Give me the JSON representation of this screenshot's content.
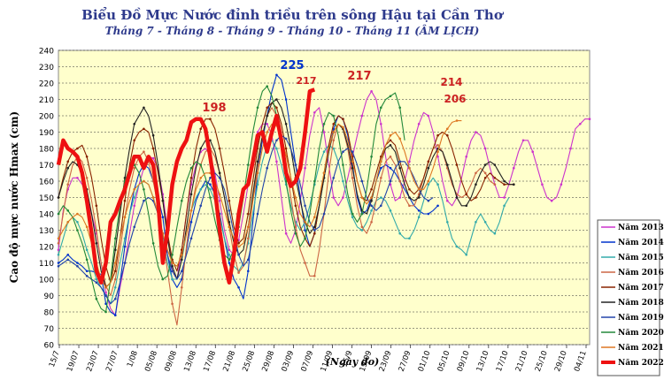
{
  "title": "Biểu Đồ Mực Nước đỉnh triều trên sông Hậu tại Cần Thơ",
  "subtitle": "Tháng 7 - Tháng 8 - Tháng 9 - Tháng 10 - Tháng 11 (ÂM LỊCH)",
  "chart_data": {
    "type": "line",
    "ylabel": "Cao độ mực nước Hmax (cm)",
    "xlabel": "(Ngày đo)",
    "ylim": [
      60,
      240
    ],
    "yticks": [
      60,
      70,
      80,
      90,
      100,
      110,
      120,
      130,
      140,
      150,
      160,
      170,
      180,
      190,
      200,
      210,
      220,
      230,
      240
    ],
    "xticks": [
      "15/7",
      "19/07",
      "23/07",
      "27/07",
      "1/08",
      "05/08",
      "09/08",
      "13/08",
      "17/08",
      "21/08",
      "25/08",
      "29/08",
      "03/09",
      "07/09",
      "11/09",
      "15/9",
      "19/09",
      "23/09",
      "27/09",
      "01/10",
      "05/10",
      "09/10",
      "13/10",
      "17/10",
      "21/10",
      "25/10",
      "29/10",
      "04/11"
    ],
    "grid": true,
    "legend_position": "right",
    "x_start_day": 15,
    "series": [
      {
        "name": "Năm 2013",
        "color": "#cc33cc",
        "values": [
          118,
          142,
          155,
          162,
          162,
          158,
          150,
          140,
          128,
          110,
          92,
          82,
          78,
          95,
          110,
          128,
          145,
          158,
          168,
          175,
          174,
          168,
          152,
          130,
          105,
          100,
          118,
          140,
          158,
          170,
          178,
          180,
          176,
          165,
          148,
          130,
          118,
          115,
          124,
          140,
          158,
          175,
          190,
          195,
          195,
          188,
          172,
          150,
          128,
          122,
          130,
          148,
          168,
          188,
          202,
          205,
          190,
          170,
          150,
          145,
          150,
          162,
          175,
          188,
          200,
          210,
          215,
          210,
          195,
          175,
          158,
          148,
          150,
          160,
          172,
          185,
          195,
          202,
          200,
          190,
          175,
          160,
          148,
          145,
          150,
          162,
          175,
          185,
          190,
          188,
          180,
          168,
          158,
          150,
          150,
          158,
          168,
          178,
          185,
          185,
          178,
          168,
          158,
          150,
          148,
          150,
          158,
          168,
          180,
          192,
          195,
          198,
          198
        ]
      },
      {
        "name": "Năm 2014",
        "color": "#0033cc",
        "values": [
          110,
          112,
          115,
          112,
          110,
          108,
          105,
          105,
          104,
          103,
          85,
          80,
          78,
          98,
          120,
          140,
          155,
          165,
          170,
          168,
          160,
          150,
          138,
          115,
          100,
          95,
          100,
          118,
          135,
          148,
          155,
          160,
          158,
          152,
          140,
          125,
          110,
          100,
          95,
          88,
          105,
          135,
          165,
          185,
          200,
          215,
          225,
          222,
          210,
          190,
          170,
          150,
          130,
          120,
          128,
          145,
          162,
          178,
          192,
          200,
          198,
          188,
          170,
          150,
          140,
          142,
          150,
          160,
          168,
          170,
          168,
          165,
          160,
          155,
          150,
          145,
          142,
          140,
          140,
          142,
          145
        ]
      },
      {
        "name": "Năm 2015",
        "color": "#33aaaa",
        "values": [
          115,
          125,
          135,
          138,
          135,
          128,
          118,
          110,
          100,
          95,
          90,
          85,
          95,
          110,
          125,
          140,
          150,
          158,
          160,
          158,
          150,
          140,
          125,
          110,
          100,
          100,
          112,
          128,
          142,
          150,
          155,
          158,
          155,
          148,
          138,
          125,
          115,
          108,
          105,
          110,
          122,
          140,
          158,
          172,
          182,
          185,
          180,
          170,
          158,
          145,
          135,
          130,
          135,
          145,
          158,
          170,
          178,
          182,
          180,
          172,
          160,
          148,
          138,
          132,
          130,
          135,
          142,
          148,
          150,
          148,
          142,
          135,
          128,
          125,
          125,
          130,
          138,
          148,
          158,
          162,
          158,
          148,
          135,
          125,
          120,
          118,
          115,
          125,
          135,
          140,
          135,
          130,
          128,
          135,
          145,
          150
        ]
      },
      {
        "name": "Năm 2016",
        "color": "#cc6644",
        "values": [
          122,
          140,
          158,
          170,
          175,
          172,
          162,
          148,
          130,
          110,
          96,
          90,
          100,
          118,
          138,
          155,
          168,
          175,
          178,
          172,
          160,
          145,
          125,
          105,
          85,
          72,
          95,
          120,
          142,
          158,
          170,
          178,
          180,
          175,
          165,
          150,
          132,
          115,
          104,
          108,
          125,
          148,
          170,
          188,
          200,
          205,
          200,
          188,
          170,
          150,
          132,
          118,
          110,
          102,
          102,
          118,
          140,
          165,
          185,
          195,
          192,
          180,
          162,
          145,
          132,
          128,
          135,
          148,
          162,
          172,
          175,
          170,
          160,
          150,
          145,
          145,
          152,
          162,
          172,
          180,
          182,
          178,
          168,
          158,
          152,
          150,
          152,
          158,
          165,
          168,
          165,
          160,
          158
        ]
      },
      {
        "name": "Năm 2017",
        "color": "#882200",
        "values": [
          150,
          162,
          172,
          178,
          180,
          182,
          175,
          162,
          145,
          125,
          108,
          98,
          105,
          125,
          148,
          170,
          185,
          190,
          192,
          190,
          180,
          165,
          148,
          128,
          112,
          105,
          118,
          140,
          162,
          180,
          192,
          198,
          198,
          192,
          180,
          165,
          148,
          132,
          122,
          125,
          140,
          160,
          180,
          195,
          205,
          208,
          205,
          195,
          180,
          162,
          145,
          132,
          125,
          120,
          128,
          145,
          165,
          182,
          195,
          200,
          198,
          190,
          175,
          160,
          150,
          148,
          155,
          165,
          175,
          182,
          185,
          182,
          172,
          162,
          155,
          152,
          155,
          162,
          172,
          180,
          188,
          190,
          188,
          180,
          170,
          160,
          152,
          148,
          150,
          155,
          162,
          165,
          162,
          160,
          158,
          158,
          158
        ]
      },
      {
        "name": "Năm 2018",
        "color": "#222222",
        "values": [
          150,
          160,
          168,
          172,
          170,
          165,
          155,
          140,
          122,
          105,
          95,
          98,
          118,
          140,
          162,
          180,
          195,
          200,
          205,
          200,
          188,
          170,
          148,
          125,
          108,
          100,
          112,
          132,
          152,
          168,
          180,
          185,
          185,
          178,
          165,
          150,
          135,
          122,
          115,
          118,
          132,
          152,
          172,
          188,
          200,
          208,
          210,
          205,
          195,
          180,
          162,
          148,
          135,
          128,
          132,
          145,
          162,
          178,
          190,
          195,
          192,
          182,
          168,
          152,
          142,
          140,
          148,
          160,
          172,
          180,
          182,
          178,
          168,
          158,
          150,
          148,
          150,
          158,
          168,
          175,
          180,
          178,
          170,
          160,
          150,
          145,
          145,
          150,
          158,
          165,
          170,
          172,
          170,
          165,
          160,
          158,
          158
        ]
      },
      {
        "name": "Năm 2019",
        "color": "#2244aa",
        "values": [
          108,
          110,
          112,
          110,
          108,
          105,
          102,
          100,
          98,
          95,
          90,
          85,
          88,
          98,
          110,
          122,
          132,
          140,
          148,
          150,
          148,
          140,
          128,
          115,
          105,
          100,
          105,
          115,
          125,
          135,
          145,
          155,
          162,
          165,
          162,
          155,
          142,
          128,
          115,
          108,
          112,
          125,
          140,
          155,
          168,
          178,
          185,
          188,
          186,
          180,
          170,
          158,
          145,
          135,
          130,
          132,
          140,
          150,
          162,
          172,
          178,
          180,
          178,
          170,
          160,
          150,
          145,
          142,
          145,
          152,
          160,
          168,
          172,
          172,
          168,
          162,
          155,
          150,
          148,
          150
        ]
      },
      {
        "name": "Năm 2020",
        "color": "#22883a",
        "values": [
          140,
          145,
          142,
          138,
          130,
          122,
          112,
          100,
          88,
          82,
          80,
          100,
          125,
          145,
          160,
          168,
          170,
          165,
          155,
          140,
          122,
          108,
          100,
          102,
          115,
          132,
          148,
          160,
          168,
          172,
          170,
          162,
          150,
          136,
          124,
          115,
          112,
          118,
          132,
          150,
          170,
          190,
          205,
          215,
          218,
          212,
          200,
          182,
          160,
          142,
          128,
          120,
          125,
          140,
          160,
          180,
          195,
          202,
          200,
          188,
          170,
          152,
          140,
          135,
          140,
          155,
          175,
          195,
          205,
          210,
          212,
          214,
          205,
          185
        ]
      },
      {
        "name": "Năm 2021",
        "color": "#dd7722",
        "values": [
          125,
          130,
          135,
          138,
          140,
          138,
          132,
          122,
          110,
          100,
          95,
          98,
          110,
          125,
          138,
          148,
          155,
          158,
          160,
          158,
          150,
          140,
          128,
          118,
          110,
          108,
          115,
          128,
          142,
          155,
          162,
          165,
          165,
          160,
          152,
          142,
          132,
          125,
          120,
          122,
          132,
          148,
          165,
          180,
          190,
          195,
          194,
          188,
          176,
          162,
          150,
          140,
          135,
          132,
          138,
          150,
          165,
          180,
          190,
          195,
          193,
          185,
          172,
          160,
          150,
          146,
          150,
          160,
          172,
          182,
          188,
          190,
          186,
          178,
          168,
          160,
          155,
          155,
          160,
          168,
          178,
          188,
          192,
          196,
          197,
          197
        ]
      },
      {
        "name": "Năm 2022",
        "color": "#ee1111",
        "values": [
          170,
          185,
          180,
          178,
          175,
          165,
          148,
          128,
          105,
          98,
          110,
          135,
          140,
          148,
          155,
          165,
          175,
          175,
          168,
          175,
          170,
          148,
          110,
          130,
          158,
          172,
          180,
          185,
          196,
          198,
          198,
          192,
          175,
          155,
          130,
          110,
          98,
          115,
          140,
          155,
          158,
          172,
          188,
          190,
          178,
          190,
          200,
          185,
          165,
          157,
          160,
          168,
          190,
          215,
          216
        ]
      }
    ],
    "annotations": [
      {
        "text": "225",
        "color": "#0033cc"
      },
      {
        "text": "217",
        "color": "#cc2222"
      },
      {
        "text": "198",
        "color": "#cc2222"
      },
      {
        "text": "217",
        "color": "#cc2222"
      },
      {
        "text": "214",
        "color": "#cc2222"
      },
      {
        "text": "206",
        "color": "#cc2222"
      }
    ]
  }
}
